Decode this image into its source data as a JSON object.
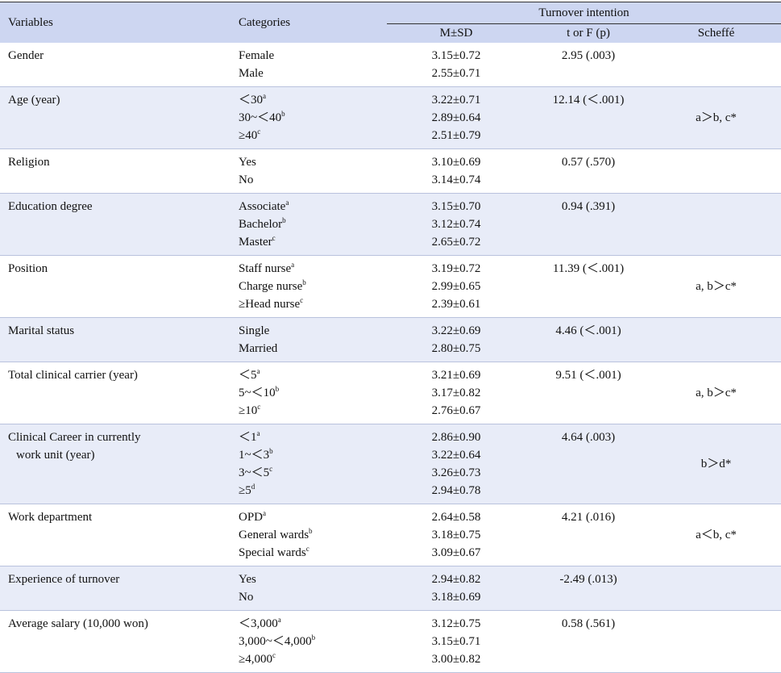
{
  "header": {
    "variables": "Variables",
    "categories": "Categories",
    "group": "Turnover intention",
    "columns": [
      "M±SD",
      "t or F (p)",
      "Scheffé"
    ]
  },
  "rows": [
    {
      "variable": [
        "Gender"
      ],
      "categories": [
        {
          "text": "Female"
        },
        {
          "text": "Male"
        }
      ],
      "msd": [
        "3.15±0.72",
        "2.55±0.71"
      ],
      "stat": "2.95 (.003)"
    },
    {
      "variable": [
        "Age (year)"
      ],
      "categories": [
        {
          "text": "＜30",
          "sup": "a"
        },
        {
          "text": "30~＜40",
          "sup": "b"
        },
        {
          "text": "≥40",
          "sup": "c"
        }
      ],
      "msd": [
        "3.22±0.71",
        "2.89±0.64",
        "2.51±0.79"
      ],
      "stat": "12.14 (＜.001)",
      "scheffe": "a＞b, c*"
    },
    {
      "variable": [
        "Religion"
      ],
      "categories": [
        {
          "text": "Yes"
        },
        {
          "text": "No"
        }
      ],
      "msd": [
        "3.10±0.69",
        "3.14±0.74"
      ],
      "stat": "0.57 (.570)"
    },
    {
      "variable": [
        "Education degree"
      ],
      "categories": [
        {
          "text": "Associate",
          "sup": "a"
        },
        {
          "text": "Bachelor",
          "sup": "b"
        },
        {
          "text": "Master",
          "sup": "c"
        }
      ],
      "msd": [
        "3.15±0.70",
        "3.12±0.74",
        "2.65±0.72"
      ],
      "stat": "0.94 (.391)"
    },
    {
      "variable": [
        "Position"
      ],
      "categories": [
        {
          "text": "Staff nurse",
          "sup": "a"
        },
        {
          "text": "Charge nurse",
          "sup": "b"
        },
        {
          "text": "≥Head nurse",
          "sup": "c"
        }
      ],
      "msd": [
        "3.19±0.72",
        "2.99±0.65",
        "2.39±0.61"
      ],
      "stat": "11.39 (＜.001)",
      "scheffe": "a, b＞c*"
    },
    {
      "variable": [
        "Marital status"
      ],
      "categories": [
        {
          "text": "Single"
        },
        {
          "text": "Married"
        }
      ],
      "msd": [
        "3.22±0.69",
        "2.80±0.75"
      ],
      "stat": "4.46 (＜.001)"
    },
    {
      "variable": [
        "Total clinical carrier (year)"
      ],
      "categories": [
        {
          "text": "＜5",
          "sup": "a"
        },
        {
          "text": "5~＜10",
          "sup": "b"
        },
        {
          "text": "≥10",
          "sup": "c"
        }
      ],
      "msd": [
        "3.21±0.69",
        "3.17±0.82",
        "2.76±0.67"
      ],
      "stat": "9.51 (＜.001)",
      "scheffe": "a, b＞c*"
    },
    {
      "variable": [
        "Clinical Career in currently",
        "work unit (year)"
      ],
      "categories": [
        {
          "text": "＜1",
          "sup": "a"
        },
        {
          "text": "1~＜3",
          "sup": "b"
        },
        {
          "text": "3~＜5",
          "sup": "c"
        },
        {
          "text": "≥5",
          "sup": "d"
        }
      ],
      "msd": [
        "2.86±0.90",
        "3.22±0.64",
        "3.26±0.73",
        "2.94±0.78"
      ],
      "stat": "4.64 (.003)",
      "scheffe": "b＞d*"
    },
    {
      "variable": [
        "Work department"
      ],
      "categories": [
        {
          "text": "OPD",
          "sup": "a"
        },
        {
          "text": "General wards",
          "sup": "b"
        },
        {
          "text": "Special wards",
          "sup": "c"
        }
      ],
      "msd": [
        "2.64±0.58",
        "3.18±0.75",
        "3.09±0.67"
      ],
      "stat": "4.21 (.016)",
      "scheffe": "a＜b, c*"
    },
    {
      "variable": [
        "Experience of turnover"
      ],
      "categories": [
        {
          "text": "Yes"
        },
        {
          "text": "No"
        }
      ],
      "msd": [
        "2.94±0.82",
        "3.18±0.69"
      ],
      "stat": "-2.49 (.013)"
    },
    {
      "variable": [
        "Average salary (10,000 won)"
      ],
      "categories": [
        {
          "text": "＜3,000",
          "sup": "a"
        },
        {
          "text": "3,000~＜4,000",
          "sup": "b"
        },
        {
          "text": "≥4,000",
          "sup": "c"
        }
      ],
      "msd": [
        "3.12±0.75",
        "3.15±0.71",
        "3.00±0.82"
      ],
      "stat": "0.58 (.561)"
    }
  ]
}
